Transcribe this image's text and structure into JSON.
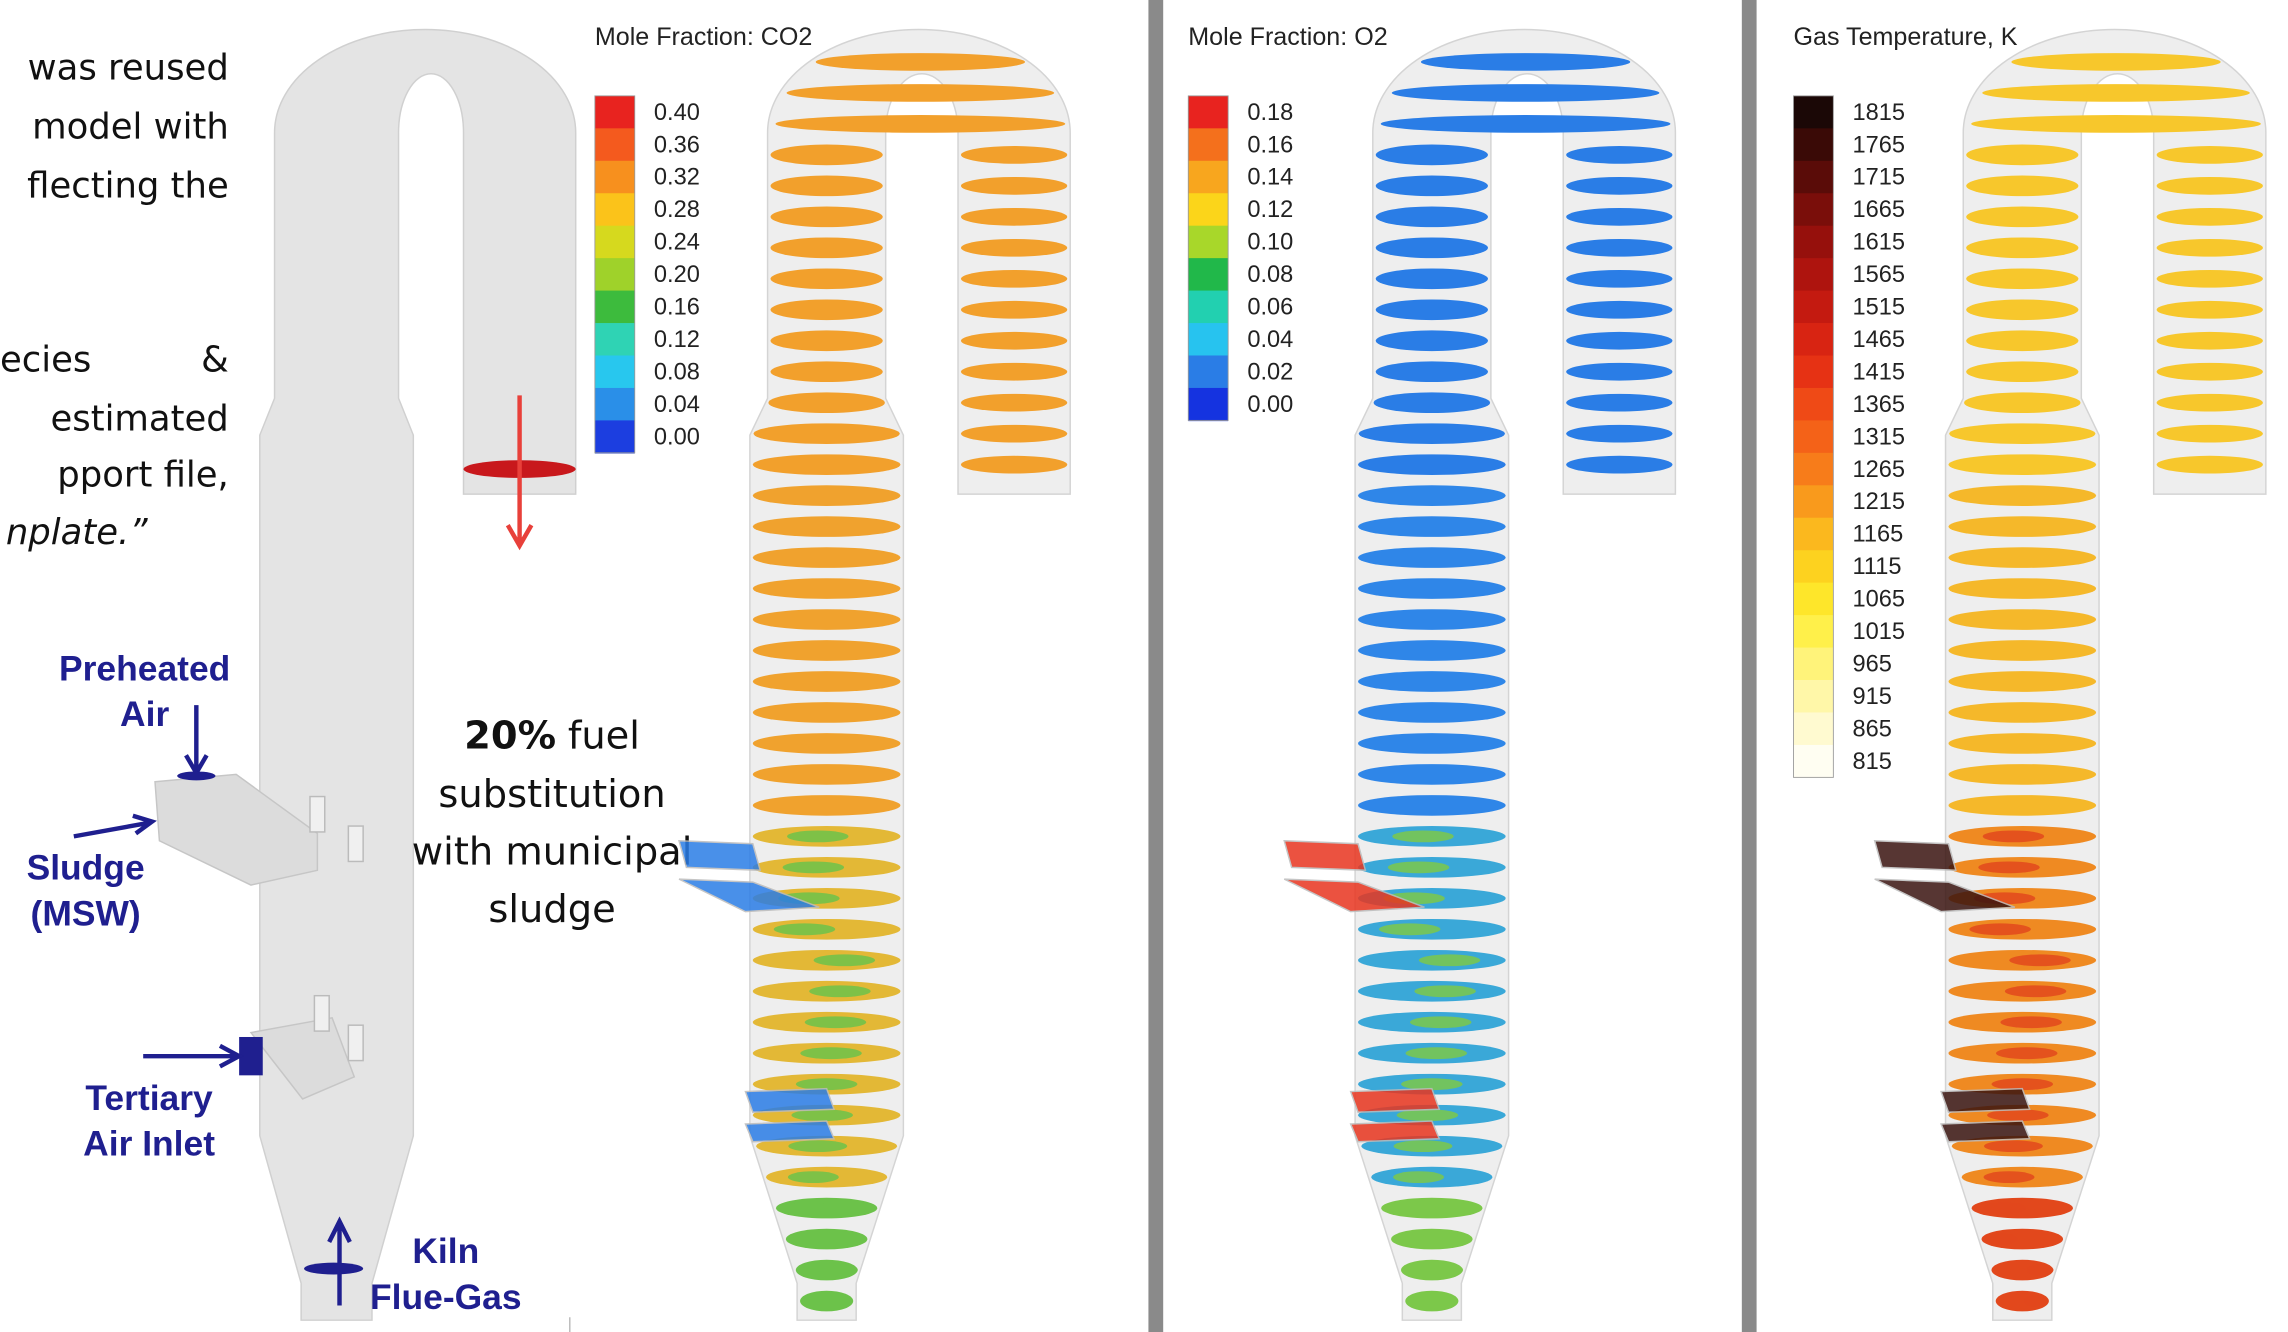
{
  "paragraph": [
    "was reused",
    "model with",
    "flecting the",
    "ecies",
    "&",
    "estimated",
    "pport file,",
    "nplate.”"
  ],
  "labels": [
    "Preheated",
    "Air",
    "Sludge",
    "(MSW)",
    "Tertiary",
    "Air Inlet",
    "Kiln",
    "Flue-Gas"
  ],
  "annotation": {
    "bold": "20%",
    "rest": "fuel",
    "lines": [
      "substitution",
      "with municipal",
      "sludge"
    ]
  },
  "panels": [
    {
      "title": "Mole Fraction: CO2",
      "ticks": [
        "0.40",
        "0.36",
        "0.32",
        "0.28",
        "0.24",
        "0.20",
        "0.16",
        "0.12",
        "0.08",
        "0.04",
        "0.00"
      ],
      "colors": [
        "#e8231f",
        "#f45a1e",
        "#f7901e",
        "#fbc31a",
        "#d6d91e",
        "#9fd22a",
        "#3dbb3d",
        "#2fd3b4",
        "#28c7ee",
        "#2a8fe8",
        "#1c3ee0"
      ],
      "ring_colors": [
        "#f2a02c",
        "#f0a22e",
        "#e3b836",
        "#6cc24a"
      ],
      "inlet_color": "#2a7de6"
    },
    {
      "title": "Mole Fraction: O2",
      "ticks": [
        "0.18",
        "0.16",
        "0.14",
        "0.12",
        "0.10",
        "0.08",
        "0.06",
        "0.04",
        "0.02",
        "0.00"
      ],
      "colors": [
        "#e8231f",
        "#f4701c",
        "#f8a61e",
        "#fbd51a",
        "#a8d72a",
        "#21b84a",
        "#22d0b0",
        "#27c3ef",
        "#2a7de6",
        "#1533e0"
      ],
      "ring_colors": [
        "#2a7de6",
        "#2f86e8",
        "#3aa8d8",
        "#7cc84a"
      ],
      "inlet_color": "#e8351f"
    },
    {
      "title": "Gas Temperature, K",
      "ticks": [
        "1815",
        "1765",
        "1715",
        "1665",
        "1615",
        "1565",
        "1515",
        "1465",
        "1415",
        "1365",
        "1315",
        "1265",
        "1215",
        "1165",
        "1115",
        "1065",
        "1015",
        "965",
        "915",
        "865",
        "815"
      ],
      "colors": [
        "#1b0806",
        "#3a0a06",
        "#5a0c08",
        "#7a0e0a",
        "#96100c",
        "#ae140e",
        "#c41a10",
        "#d82412",
        "#e63214",
        "#ef4a16",
        "#f46218",
        "#f77c1a",
        "#f99a1c",
        "#fbb81e",
        "#fdd21f",
        "#fee62a",
        "#fff04a",
        "#fff37a",
        "#fff7a8",
        "#fffad0",
        "#fffef2"
      ],
      "ring_colors": [
        "#f7c72c",
        "#f5b82a",
        "#ef8a22",
        "#e2481c"
      ],
      "inlet_color": "#3a1410"
    }
  ]
}
